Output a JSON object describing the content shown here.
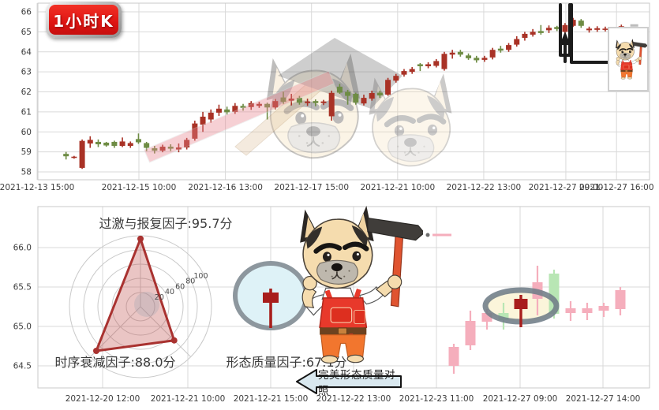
{
  "ui": {
    "timeframe_badge": "1小时K",
    "mascot_icon": "worker-dog-with-hammer-icon",
    "watermark_icons": [
      "dog-head-icon",
      "hammer-icon"
    ]
  },
  "colors": {
    "up": "#a93226",
    "down": "#6e8c44",
    "up_faded": "#f5aebc",
    "down_faded": "#b8e6b4",
    "highlight": "#a81e1c",
    "grid": "#d9d9d9",
    "border": "#c9c9c9",
    "axis_text": "#3d3d3d",
    "radar_line": "#a93230",
    "radar_fill": "#c0504b",
    "annotation": "#1b1b1b",
    "ribbon": "#e8858f",
    "circle_marker_fill": "#def2f7",
    "circle_marker_stroke": "#8d979e",
    "ellipse_marker_fill": "#fbf5da",
    "ellipse_marker_stroke": "#6f7d88",
    "arrow_fill": "#d9e8ef",
    "last_dash": "#bcbcbc"
  },
  "chart_data": [
    {
      "type": "candlestick",
      "name": "hourly-kline",
      "badge": "1小时K",
      "ylim": [
        57.55,
        66.45
      ],
      "y_ticks": [
        58,
        59,
        60,
        61,
        62,
        63,
        64,
        65,
        66
      ],
      "total_slots": 76,
      "x_ticks": [
        {
          "label": "2021-12-13 15:00",
          "slot": -0.6
        },
        {
          "label": "2021-12-15 10:00",
          "slot": 12.05
        },
        {
          "label": "2021-12-16 13:00",
          "slot": 22.8
        },
        {
          "label": "2021-12-17 15:00",
          "slot": 33.5
        },
        {
          "label": "2021-12-21 10:00",
          "slot": 44.2
        },
        {
          "label": "2021-12-22 13:00",
          "slot": 54.9
        },
        {
          "label": "2021-12-27 09:00",
          "slot": 65.1
        },
        {
          "label": "2021-12-27 16:00",
          "slot": 71.4
        }
      ],
      "candles": [
        [
          3,
          58.9,
          58.78,
          58.62,
          59.0
        ],
        [
          4,
          58.72,
          58.76,
          58.66,
          58.8
        ],
        [
          5,
          58.2,
          59.55,
          58.15,
          59.62
        ],
        [
          6,
          59.42,
          59.6,
          59.2,
          59.78
        ],
        [
          7,
          59.5,
          59.38,
          59.24,
          59.62
        ],
        [
          8,
          59.46,
          59.32,
          59.26,
          59.5
        ],
        [
          9,
          59.5,
          59.3,
          59.2,
          59.56
        ],
        [
          10,
          59.3,
          59.52,
          59.24,
          59.72
        ],
        [
          11,
          59.3,
          59.44,
          59.2,
          59.52
        ],
        [
          12,
          59.64,
          59.48,
          59.4,
          59.92
        ],
        [
          13,
          59.44,
          59.2,
          59.04,
          59.5
        ],
        [
          14,
          59.18,
          59.06,
          58.92,
          59.3
        ],
        [
          15,
          59.06,
          59.26,
          58.98,
          59.36
        ],
        [
          16,
          59.26,
          59.16,
          59.04,
          59.38
        ],
        [
          17,
          59.12,
          59.22,
          58.98,
          59.42
        ],
        [
          18,
          59.22,
          59.6,
          59.12,
          59.7
        ],
        [
          19,
          59.66,
          60.42,
          59.56,
          60.56
        ],
        [
          20,
          60.36,
          60.76,
          60.0,
          61.0
        ],
        [
          21,
          60.62,
          60.96,
          60.46,
          61.12
        ],
        [
          22,
          60.96,
          61.16,
          60.8,
          61.36
        ],
        [
          23,
          61.12,
          60.98,
          60.86,
          61.26
        ],
        [
          24,
          61.0,
          61.3,
          60.9,
          61.44
        ],
        [
          25,
          61.3,
          61.2,
          61.06,
          61.4
        ],
        [
          26,
          61.24,
          61.44,
          61.1,
          61.54
        ],
        [
          27,
          61.3,
          61.4,
          61.2,
          61.5
        ],
        [
          28,
          61.4,
          61.22,
          60.62,
          61.46
        ],
        [
          29,
          61.22,
          61.54,
          61.12,
          61.64
        ],
        [
          30,
          61.72,
          61.5,
          61.4,
          62.0
        ],
        [
          31,
          61.56,
          61.66,
          61.32,
          61.9
        ],
        [
          32,
          61.7,
          61.46,
          61.36,
          61.8
        ],
        [
          33,
          61.44,
          61.52,
          61.3,
          61.66
        ],
        [
          34,
          61.54,
          61.44,
          61.28,
          61.62
        ],
        [
          35,
          61.44,
          61.52,
          61.34,
          61.6
        ],
        [
          36,
          60.78,
          61.95,
          60.56,
          62.06
        ],
        [
          37,
          62.26,
          61.96,
          61.9,
          62.4
        ],
        [
          38,
          62.0,
          61.8,
          61.36,
          62.1
        ],
        [
          39,
          61.9,
          61.46,
          61.36,
          61.96
        ],
        [
          40,
          61.42,
          61.7,
          61.32,
          61.86
        ],
        [
          41,
          61.66,
          61.94,
          61.56,
          62.06
        ],
        [
          42,
          61.96,
          61.82,
          61.7,
          62.06
        ],
        [
          43,
          61.86,
          62.6,
          61.8,
          62.7
        ],
        [
          44,
          62.56,
          62.8,
          62.46,
          62.9
        ],
        [
          45,
          62.86,
          63.04,
          62.76,
          63.14
        ],
        [
          46,
          63.0,
          63.14,
          62.9,
          63.24
        ],
        [
          47,
          63.38,
          63.28,
          63.04,
          63.44
        ],
        [
          48,
          63.28,
          63.38,
          63.18,
          63.48
        ],
        [
          49,
          63.3,
          63.54,
          63.22,
          63.64
        ],
        [
          50,
          63.14,
          63.9,
          63.06,
          64.0
        ],
        [
          51,
          63.86,
          63.96,
          63.66,
          64.1
        ],
        [
          52,
          64.0,
          63.86,
          63.76,
          64.1
        ],
        [
          53,
          63.82,
          63.68,
          63.6,
          63.92
        ],
        [
          54,
          63.7,
          63.58,
          63.46,
          63.8
        ],
        [
          55,
          63.6,
          63.7,
          63.5,
          63.8
        ],
        [
          56,
          63.72,
          64.1,
          63.62,
          64.2
        ],
        [
          57,
          64.16,
          64.06,
          63.96,
          64.3
        ],
        [
          58,
          64.1,
          64.34,
          64.0,
          64.44
        ],
        [
          59,
          64.36,
          64.64,
          64.26,
          64.78
        ],
        [
          60,
          64.7,
          64.9,
          64.56,
          65.0
        ],
        [
          61,
          64.86,
          65.0,
          64.76,
          65.14
        ],
        [
          62,
          65.04,
          64.94,
          64.86,
          65.34
        ],
        [
          63,
          65.08,
          65.2,
          64.94,
          65.32
        ],
        [
          64,
          65.24,
          65.14,
          65.04,
          65.3
        ],
        [
          65,
          65.0,
          65.34,
          64.6,
          65.44
        ],
        [
          66,
          65.3,
          65.6,
          65.24,
          65.7
        ],
        [
          67,
          65.56,
          65.3,
          65.2,
          65.64
        ],
        [
          68,
          65.08,
          65.16,
          64.96,
          65.26
        ],
        [
          69,
          65.1,
          65.18,
          65.0,
          65.28
        ],
        [
          70,
          65.1,
          65.16,
          65.02,
          65.26
        ],
        [
          71,
          65.04,
          65.12,
          64.94,
          65.22
        ],
        [
          72,
          65.08,
          65.28,
          65.0,
          65.36
        ]
      ],
      "last_price_dash": {
        "slot": 73.6,
        "value": 65.32
      },
      "callout_target_slots": [
        65,
        66
      ]
    },
    {
      "type": "radar",
      "name": "pattern-factor-radar",
      "max": 100,
      "ring_values": [
        20,
        40,
        60,
        80,
        100
      ],
      "factors": [
        {
          "label": "过激与报复因子",
          "score": 95.7,
          "text": "过激与报复因子:95.7分",
          "angle": 90
        },
        {
          "label": "时序衰减因子",
          "score": 88.0,
          "text": "时序衰减因子:88.0分",
          "angle": 225
        },
        {
          "label": "形态质量因子",
          "score": 67.1,
          "text": "形态质量因子:67.1分",
          "angle": 315
        }
      ]
    },
    {
      "type": "candlestick",
      "name": "perfect-pattern-reference",
      "ylim": [
        64.14,
        66.5
      ],
      "y_ticks": [
        64.5,
        65.0,
        65.5,
        66.0
      ],
      "x_ticks": [
        {
          "label": "2021-12-20 12:00",
          "x": 130
        },
        {
          "label": "2021-12-21 10:00",
          "x": 238
        },
        {
          "label": "2021-12-21 15:00",
          "x": 343
        },
        {
          "label": "2021-12-22 13:00",
          "x": 448
        },
        {
          "label": "2021-12-23 11:00",
          "x": 553
        },
        {
          "label": "2021-12-27 09:00",
          "x": 659
        },
        {
          "label": "2021-12-27 14:00",
          "x": 764
        }
      ],
      "candles": [
        [
          575,
          64.5,
          64.74,
          64.4,
          64.78
        ],
        [
          596,
          64.76,
          65.07,
          64.7,
          65.2
        ],
        [
          617,
          65.06,
          65.17,
          64.96,
          65.22
        ],
        [
          638,
          65.17,
          65.08,
          64.96,
          65.3
        ],
        [
          660,
          65.22,
          65.35,
          64.99,
          65.4
        ],
        [
          681,
          65.35,
          65.56,
          65.14,
          65.77
        ],
        [
          702,
          65.67,
          65.16,
          65.1,
          65.72
        ],
        [
          723,
          65.17,
          65.23,
          65.07,
          65.32
        ],
        [
          744,
          65.17,
          65.23,
          65.08,
          65.3
        ],
        [
          765,
          65.2,
          65.26,
          65.12,
          65.3
        ],
        [
          786,
          65.22,
          65.46,
          65.14,
          65.5
        ]
      ],
      "highlight_index": 4,
      "circle_glyph": {
        "x": 343,
        "open": 65.3,
        "close": 65.43,
        "low": 64.98,
        "high": 65.48
      },
      "arrow_label": "完美形态质量对照"
    }
  ]
}
